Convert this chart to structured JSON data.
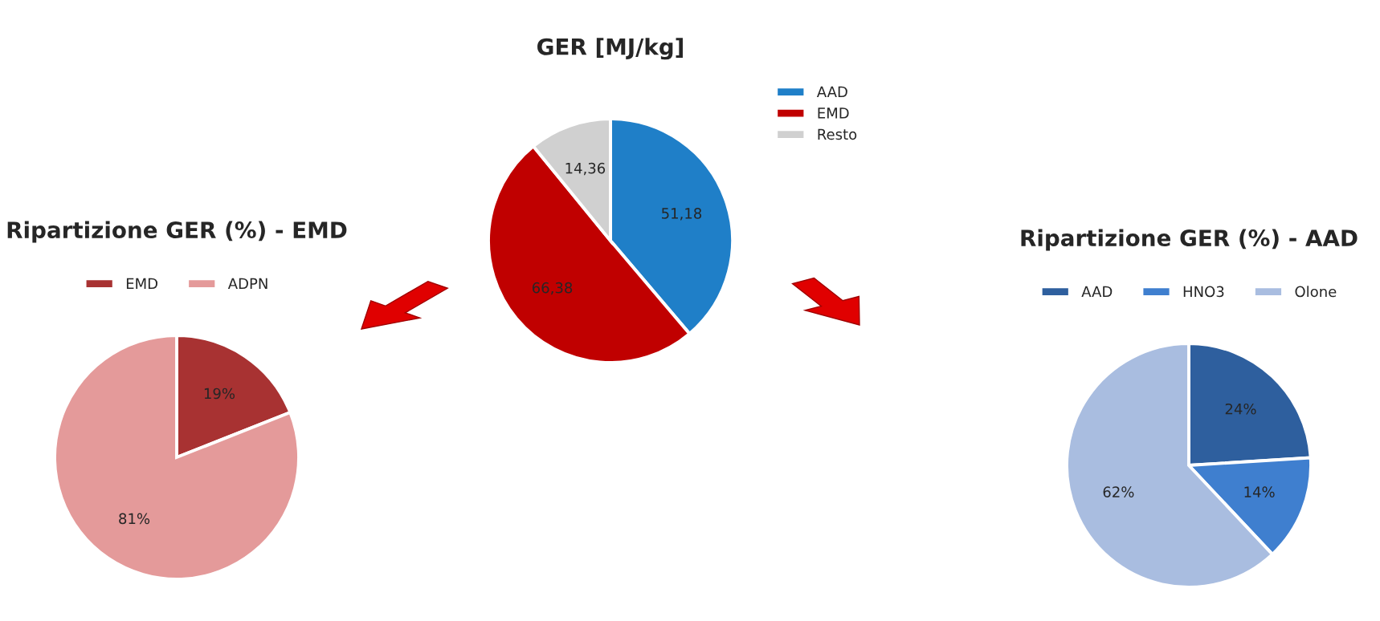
{
  "chart_data": [
    {
      "type": "pie",
      "title": "GER [MJ/kg]",
      "categories": [
        "AAD",
        "EMD",
        "Resto"
      ],
      "values": [
        51.18,
        66.38,
        14.36
      ],
      "colors": [
        "#1f7fc8",
        "#c00000",
        "#d0d0d0"
      ],
      "value_labels": [
        "51,18",
        "66,38",
        "14,36"
      ],
      "legend": "right"
    },
    {
      "type": "pie",
      "title": "Ripartizione GER (%) - EMD",
      "categories": [
        "EMD",
        "ADPN"
      ],
      "values": [
        19,
        81
      ],
      "colors": [
        "#a83232",
        "#e49a9a"
      ],
      "value_labels": [
        "19%",
        "81%"
      ],
      "legend": "top"
    },
    {
      "type": "pie",
      "title": "Ripartizione GER (%) - AAD",
      "categories": [
        "AAD",
        "HNO3",
        "Olone"
      ],
      "values": [
        24,
        14,
        62
      ],
      "colors": [
        "#2e5f9e",
        "#3f7fcf",
        "#a9bde0"
      ],
      "value_labels": [
        "24%",
        "14%",
        "62%"
      ],
      "legend": "top"
    }
  ]
}
